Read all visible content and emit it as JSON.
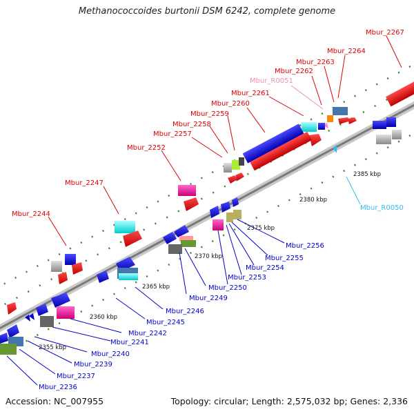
{
  "title": "Methanococcoides burtonii DSM 6242, complete genome",
  "footer": {
    "accession": "Accession: NC_007955",
    "topology": "Topology: circular; Length: 2,575,032 bp; Genes: 2,336"
  },
  "ruler": [
    "2355 kbp",
    "2360 kbp",
    "2365 kbp",
    "2370 kbp",
    "2375 kbp",
    "2380 kbp",
    "2385 kbp"
  ],
  "labels": {
    "top": [
      "Mbur_2267",
      "Mbur_2264",
      "Mbur_2263",
      "Mbur_2262",
      "Mbur_R0051",
      "Mbur_2261",
      "Mbur_2260",
      "Mbur_2259",
      "Mbur_2258",
      "Mbur_2257",
      "Mbur_2252",
      "Mbur_2247",
      "Mbur_2244"
    ],
    "bottom": [
      "Mbur_R0050",
      "Mbur_2256",
      "Mbur_2255",
      "Mbur_2254",
      "Mbur_2253",
      "Mbur_2250",
      "Mbur_2249",
      "Mbur_2246",
      "Mbur_2245",
      "Mbur_2242",
      "Mbur_2241",
      "Mbur_2240",
      "Mbur_2239",
      "Mbur_2237",
      "Mbur_2236"
    ]
  },
  "colors": {
    "forward_label": "#dd0000",
    "reverse_label": "#0000cc",
    "rna_forward_label": "#ee8fb8",
    "rna_reverse_label": "#33bbee",
    "backbone": "#9a9a9a",
    "tick": "#2f8a2f"
  }
}
